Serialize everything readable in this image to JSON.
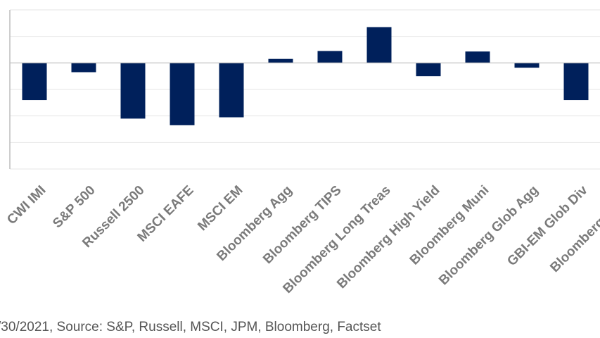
{
  "source_note": "/30/2021, Source: S&P, Russell, MSCI, JPM, Bloomberg, Factset",
  "colors": {
    "bar": "#00205b",
    "grid": "#e6e6e6",
    "axis": "#bdbdbd",
    "label": "#7a7a7a"
  },
  "chart_data": {
    "type": "bar",
    "categories": [
      "CWI IMI",
      "S&P 500",
      "Russell 2500",
      "MSCI EAFE",
      "MSCI EM",
      "Bloomberg Agg",
      "Bloomberg TIPS",
      "Bloomberg Long Treas",
      "Bloomberg High Yield",
      "Bloomberg Muni",
      "Bloomberg Glob Agg",
      "GBI-EM Glob Div",
      "Bloomberg Comm"
    ],
    "values": [
      -1.4,
      -0.35,
      -2.1,
      -2.35,
      -2.05,
      0.15,
      0.45,
      1.35,
      -0.5,
      0.43,
      -0.18,
      -1.4,
      0
    ],
    "ylim": [
      -4,
      2
    ],
    "grid": true,
    "legend": "none",
    "title": "",
    "xlabel": "",
    "ylabel": ""
  }
}
